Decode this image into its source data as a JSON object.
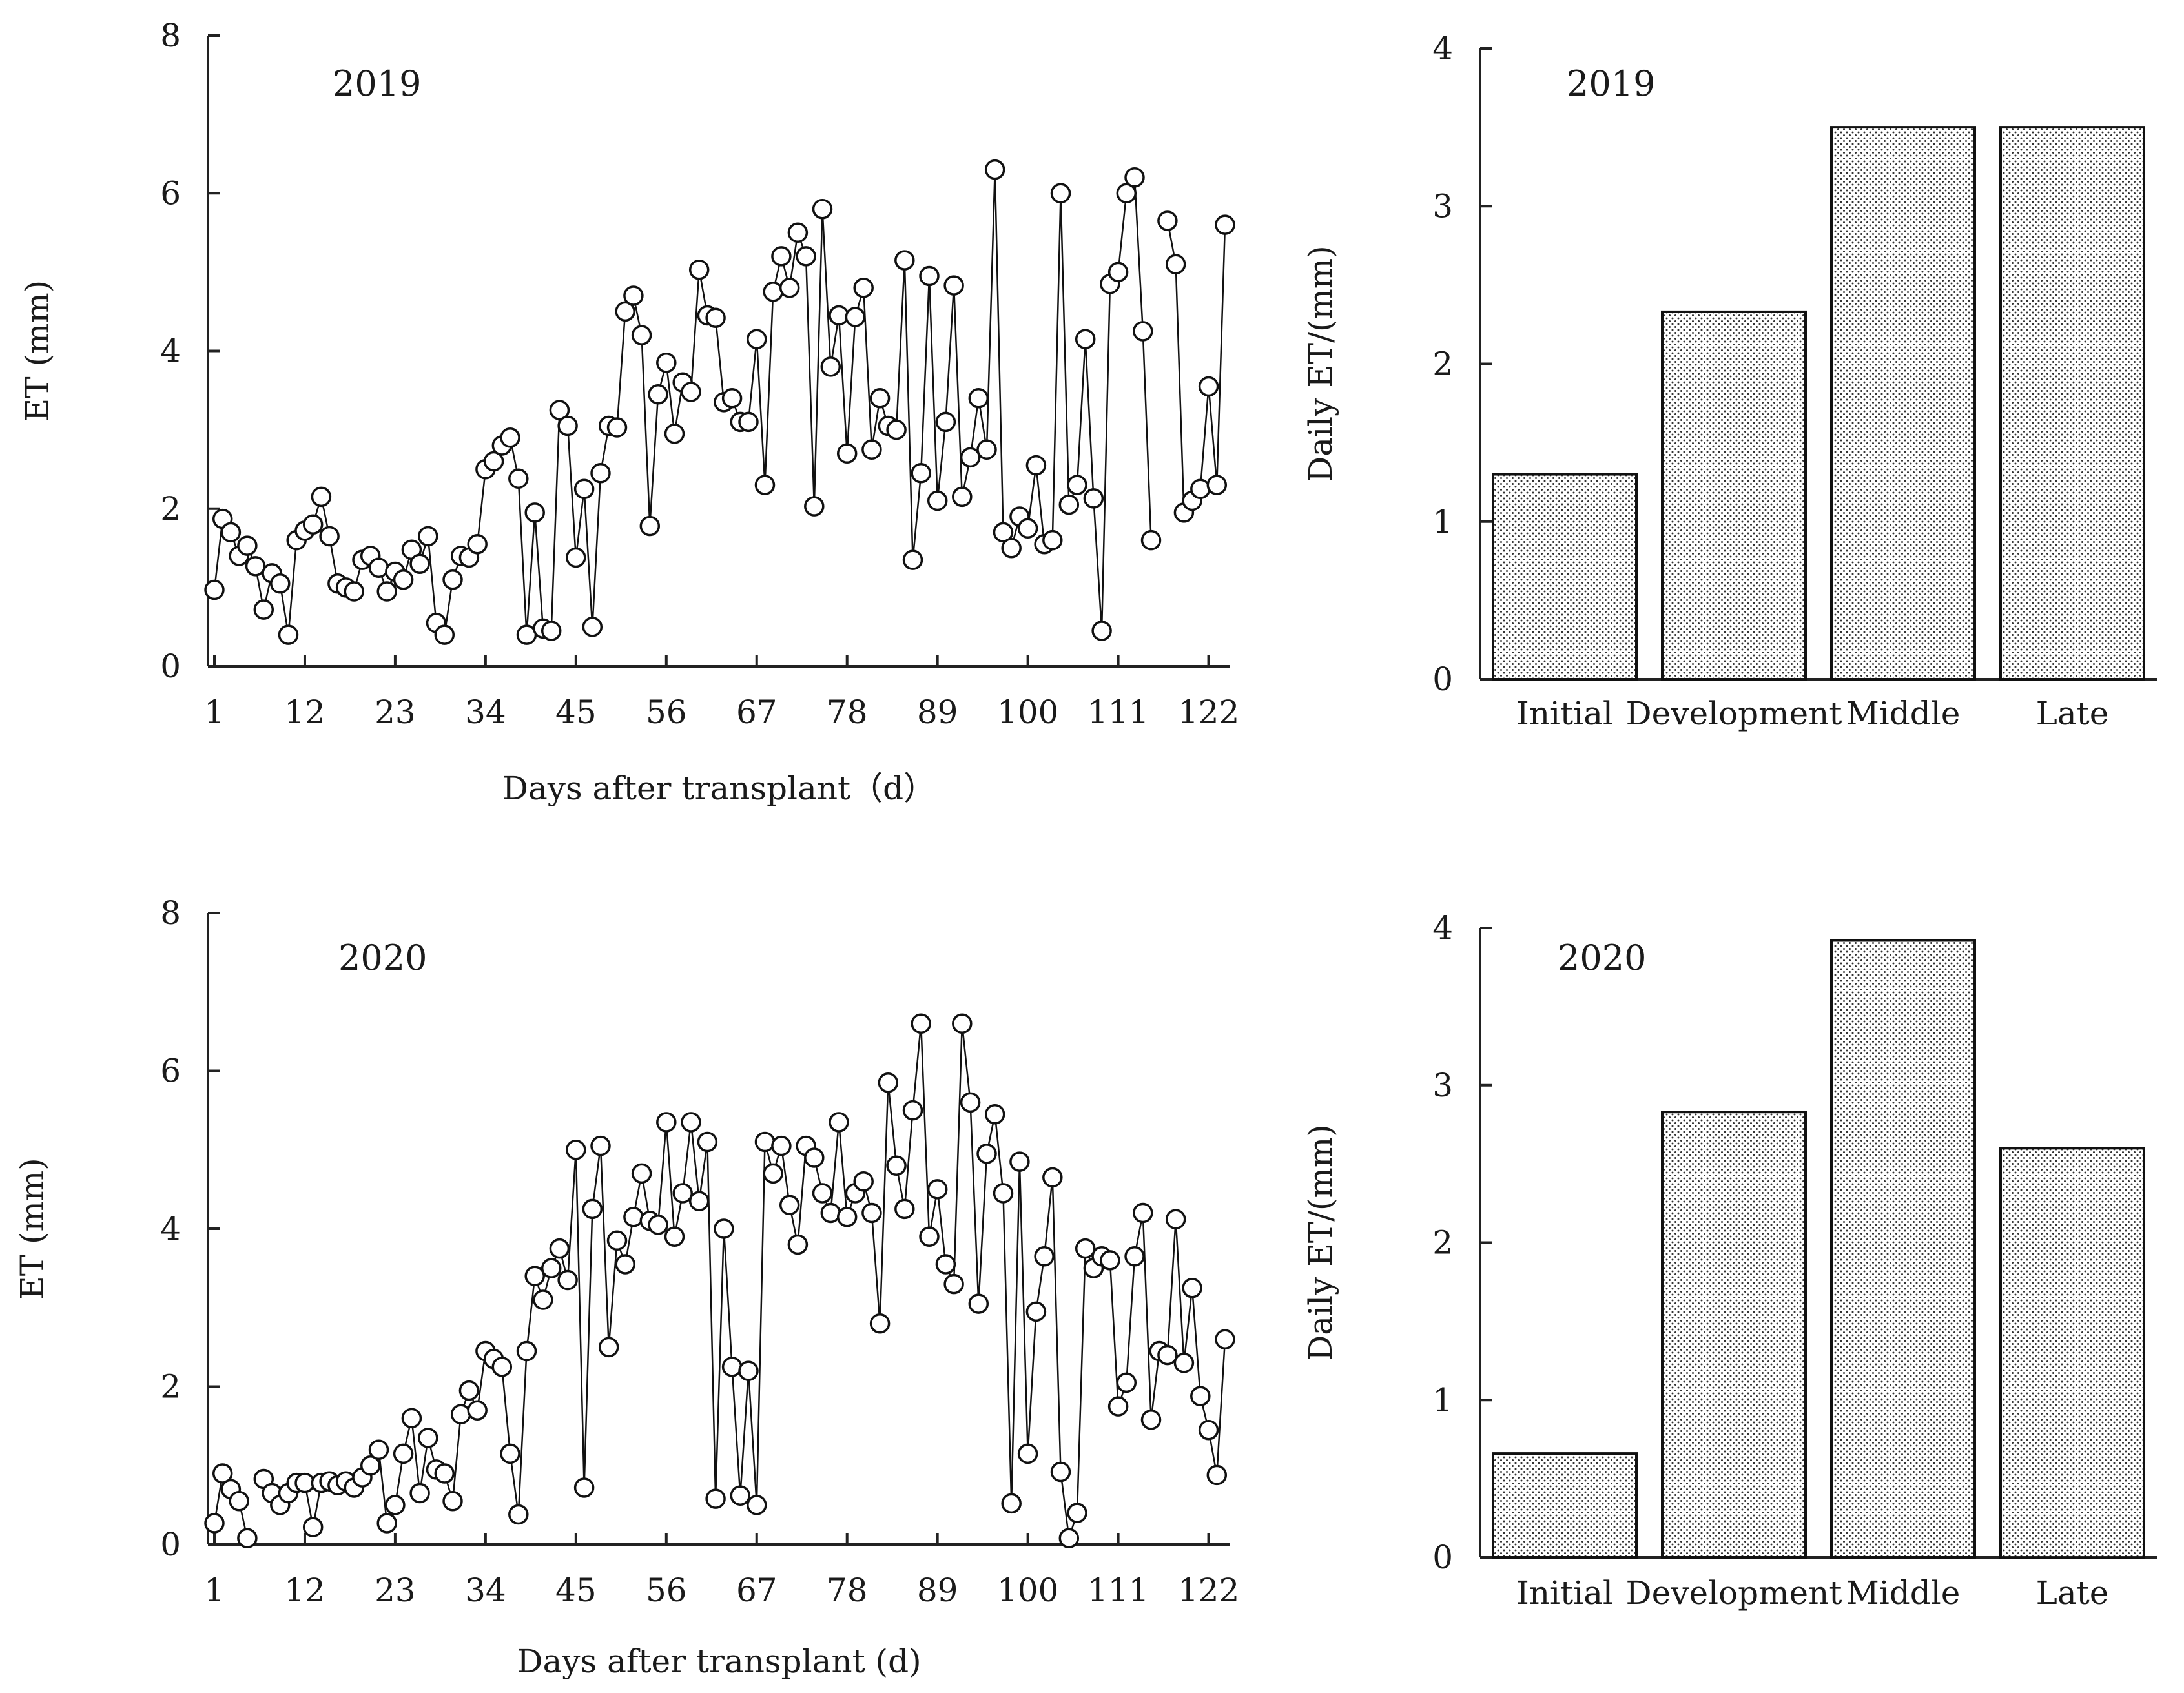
{
  "chart_data": [
    {
      "id": "et2019",
      "type": "line",
      "marker": "open-circle",
      "annotation": "2019",
      "xlabel": "Days after transplant（d）",
      "ylabel": "ET (mm)",
      "xlim": [
        1,
        124
      ],
      "ylim": [
        0,
        8
      ],
      "xticks": [
        1,
        12,
        23,
        34,
        45,
        56,
        67,
        78,
        89,
        100,
        111,
        122
      ],
      "yticks": [
        0,
        2,
        4,
        6,
        8
      ],
      "values": [
        0.97,
        1.87,
        1.7,
        1.4,
        1.53,
        1.27,
        0.72,
        1.18,
        1.05,
        0.4,
        1.6,
        1.72,
        1.8,
        2.15,
        1.65,
        1.05,
        1.0,
        0.95,
        1.35,
        1.4,
        1.25,
        0.95,
        1.2,
        1.1,
        1.48,
        1.3,
        1.65,
        0.55,
        0.4,
        1.1,
        1.4,
        1.38,
        1.55,
        2.5,
        2.6,
        2.8,
        2.9,
        2.38,
        0.4,
        1.95,
        0.48,
        0.45,
        3.25,
        3.05,
        1.38,
        2.25,
        0.5,
        2.45,
        3.05,
        3.03,
        4.5,
        4.7,
        4.2,
        1.78,
        3.45,
        3.85,
        2.95,
        3.6,
        3.48,
        5.03,
        4.45,
        4.42,
        3.35,
        3.4,
        3.1,
        3.1,
        4.15,
        2.3,
        4.75,
        5.2,
        4.8,
        5.5,
        5.2,
        2.03,
        5.8,
        3.8,
        4.45,
        2.7,
        4.43,
        4.8,
        2.75,
        3.4,
        3.05,
        3.0,
        5.15,
        1.35,
        2.45,
        4.95,
        2.1,
        3.1,
        4.83,
        2.15,
        2.65,
        3.4,
        2.75,
        6.3,
        1.7,
        1.5,
        1.9,
        1.75,
        2.55,
        1.55,
        1.6,
        6.0,
        2.05,
        2.3,
        4.15,
        2.13,
        0.45,
        4.85,
        5.0,
        6.0,
        6.2,
        4.25,
        1.6,
        null,
        5.65,
        5.1,
        1.95,
        2.1,
        2.25,
        3.55,
        2.3,
        5.6
      ]
    },
    {
      "id": "et2020",
      "type": "line",
      "marker": "open-circle",
      "annotation": "2020",
      "xlabel": "Days after transplant (d)",
      "ylabel": "ET (mm)",
      "xlim": [
        1,
        124
      ],
      "ylim": [
        0,
        8
      ],
      "xticks": [
        1,
        12,
        23,
        34,
        45,
        56,
        67,
        78,
        89,
        100,
        111,
        122
      ],
      "yticks": [
        0,
        2,
        4,
        6,
        8
      ],
      "values": [
        0.27,
        0.9,
        0.7,
        0.55,
        0.08,
        null,
        0.83,
        0.65,
        0.5,
        0.65,
        0.78,
        0.78,
        0.22,
        0.78,
        0.8,
        0.75,
        0.8,
        0.72,
        0.85,
        1.0,
        1.2,
        0.27,
        0.5,
        1.15,
        1.6,
        0.65,
        1.35,
        0.95,
        0.9,
        0.55,
        1.65,
        1.95,
        1.7,
        2.45,
        2.35,
        2.25,
        1.15,
        0.38,
        2.45,
        3.4,
        3.1,
        3.5,
        3.75,
        3.35,
        5.0,
        0.72,
        4.25,
        5.05,
        2.5,
        3.85,
        3.55,
        4.15,
        4.7,
        4.1,
        4.05,
        5.35,
        3.9,
        4.45,
        5.35,
        4.35,
        5.1,
        0.58,
        4.0,
        2.25,
        0.62,
        2.2,
        0.5,
        5.1,
        4.7,
        5.05,
        4.3,
        3.8,
        5.05,
        4.9,
        4.45,
        4.2,
        5.35,
        4.15,
        4.45,
        4.6,
        4.2,
        2.8,
        5.85,
        4.8,
        4.25,
        5.5,
        6.6,
        3.9,
        4.5,
        3.55,
        3.3,
        6.6,
        5.6,
        3.05,
        4.95,
        5.45,
        4.45,
        0.52,
        4.85,
        1.15,
        2.95,
        3.65,
        4.65,
        0.92,
        0.08,
        0.4,
        3.75,
        3.5,
        3.65,
        3.6,
        1.75,
        2.05,
        3.65,
        4.2,
        1.58,
        2.45,
        2.4,
        4.12,
        2.3,
        3.25,
        1.88,
        1.45,
        0.88,
        2.6
      ]
    },
    {
      "id": "daily2019",
      "type": "bar",
      "annotation": "2019",
      "ylabel": "Daily ET/(mm)",
      "categories": [
        "Initial",
        "Development",
        "Middle",
        "Late"
      ],
      "values": [
        1.3,
        2.33,
        3.5,
        3.5
      ],
      "ylim": [
        0,
        4
      ],
      "yticks": [
        0,
        1,
        2,
        3,
        4
      ]
    },
    {
      "id": "daily2020",
      "type": "bar",
      "annotation": "2020",
      "ylabel": "Daily ET/(mm)",
      "categories": [
        "Initial",
        "Development",
        "Middle",
        "Late"
      ],
      "values": [
        0.66,
        2.83,
        3.92,
        2.6
      ],
      "ylim": [
        0,
        4
      ],
      "yticks": [
        0,
        1,
        2,
        3,
        4
      ]
    }
  ]
}
